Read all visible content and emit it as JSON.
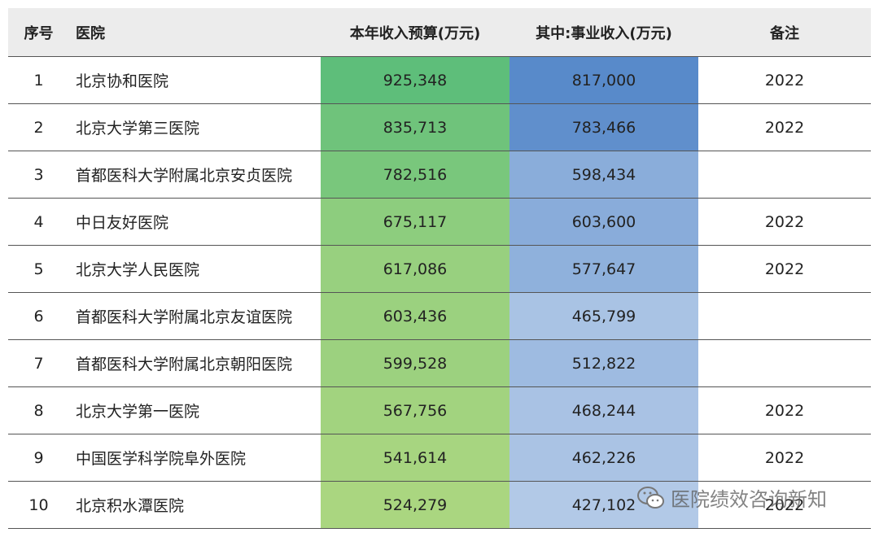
{
  "header": {
    "columns": [
      "序号",
      "医院",
      "本年收入预算(万元)",
      "其中:事业收入(万元)",
      "备注"
    ]
  },
  "table": {
    "rows": [
      [
        "1",
        "北京协和医院",
        "925,348",
        "817,000",
        "2022"
      ],
      [
        "2",
        "北京大学第三医院",
        "835,713",
        "783,466",
        "2022"
      ],
      [
        "3",
        "首都医科大学附属北京安贞医院",
        "782,516",
        "598,434",
        null
      ],
      [
        "4",
        "中日友好医院",
        "675,117",
        "603,600",
        "2022"
      ],
      [
        "5",
        "北京大学人民医院",
        "617,086",
        "577,647",
        "2022"
      ],
      [
        "6",
        "首都医科大学附属北京友谊医院",
        "603,436",
        "465,799",
        null
      ],
      [
        "7",
        "首都医科大学附属北京朝阳医院",
        "599,528",
        "512,822",
        null
      ],
      [
        "8",
        "北京大学第一医院",
        "567,756",
        "468,244",
        "2022"
      ],
      [
        "9",
        "中国医学科学院阜外医院",
        "541,614",
        "462,226",
        "2022"
      ],
      [
        "10",
        "北京积水潭医院",
        "524,279",
        "427,102",
        "2022"
      ]
    ]
  },
  "watermark": "医院绩效咨询新知"
}
